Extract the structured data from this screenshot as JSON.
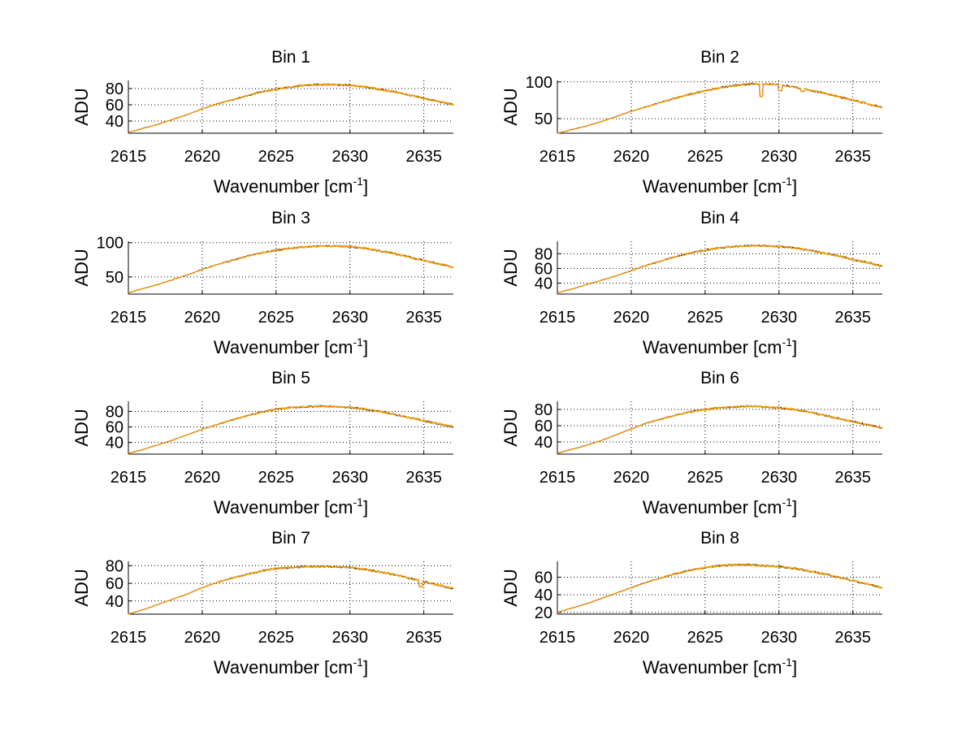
{
  "colors": {
    "background": "#ffffff",
    "series_1": "#1a1a1a",
    "series_2": "#e8c300",
    "series_3": "#ff8c00"
  },
  "chart_data": [
    {
      "type": "line",
      "title": "Bin 1",
      "xlabel": "Wavenumber [cm",
      "xlabel_sup": "-1",
      "xlabel_end": "]",
      "ylabel": "ADU",
      "xlim": [
        2615,
        2637
      ],
      "ylim": [
        25,
        90
      ],
      "xticks": [
        2615,
        2620,
        2625,
        2630,
        2635
      ],
      "yticks": [
        40,
        60,
        80
      ],
      "grid": true,
      "series": [
        {
          "name": "trace-1",
          "color": "#1a1a1a"
        },
        {
          "name": "trace-2",
          "color": "#e8c300"
        },
        {
          "name": "trace-3",
          "color": "#ff8c00"
        }
      ],
      "x": [
        2615,
        2616,
        2617,
        2618,
        2619,
        2620,
        2621,
        2622,
        2623,
        2624,
        2625,
        2626,
        2627,
        2628,
        2629,
        2630,
        2631,
        2632,
        2633,
        2634,
        2635,
        2636,
        2637
      ],
      "y": [
        26,
        31,
        36,
        42,
        48,
        55,
        61,
        66,
        71,
        76,
        79,
        82,
        84,
        85,
        85,
        84,
        82,
        79,
        76,
        72,
        68,
        64,
        60
      ],
      "features": []
    },
    {
      "type": "line",
      "title": "Bin 2",
      "xlabel": "Wavenumber [cm",
      "xlabel_sup": "-1",
      "xlabel_end": "]",
      "ylabel": "ADU",
      "xlim": [
        2615,
        2637
      ],
      "ylim": [
        30,
        102
      ],
      "xticks": [
        2615,
        2620,
        2625,
        2630,
        2635
      ],
      "yticks": [
        50,
        100
      ],
      "grid": true,
      "series": [
        {
          "name": "trace-1",
          "color": "#1a1a1a"
        },
        {
          "name": "trace-2",
          "color": "#e8c300"
        },
        {
          "name": "trace-3",
          "color": "#ff8c00"
        }
      ],
      "x": [
        2615,
        2616,
        2617,
        2618,
        2619,
        2620,
        2621,
        2622,
        2623,
        2624,
        2625,
        2626,
        2627,
        2628,
        2629,
        2630,
        2631,
        2632,
        2633,
        2634,
        2635,
        2636,
        2637
      ],
      "y": [
        30,
        35,
        40,
        46,
        53,
        60,
        66,
        72,
        78,
        83,
        88,
        92,
        95,
        97,
        97,
        96,
        93,
        89,
        85,
        80,
        75,
        70,
        65
      ],
      "features": [
        {
          "x": 2628.8,
          "y": 80
        },
        {
          "x": 2630.1,
          "y": 88
        },
        {
          "x": 2631.6,
          "y": 87
        }
      ]
    },
    {
      "type": "line",
      "title": "Bin 3",
      "xlabel": "Wavenumber [cm",
      "xlabel_sup": "-1",
      "xlabel_end": "]",
      "ylabel": "ADU",
      "xlim": [
        2615,
        2637
      ],
      "ylim": [
        25,
        102
      ],
      "xticks": [
        2615,
        2620,
        2625,
        2630,
        2635
      ],
      "yticks": [
        50,
        100
      ],
      "grid": true,
      "series": [
        {
          "name": "trace-1",
          "color": "#1a1a1a"
        },
        {
          "name": "trace-2",
          "color": "#e8c300"
        },
        {
          "name": "trace-3",
          "color": "#ff8c00"
        }
      ],
      "x": [
        2615,
        2616,
        2617,
        2618,
        2619,
        2620,
        2621,
        2622,
        2623,
        2624,
        2625,
        2626,
        2627,
        2628,
        2629,
        2630,
        2631,
        2632,
        2633,
        2634,
        2635,
        2636,
        2637
      ],
      "y": [
        27,
        33,
        39,
        46,
        53,
        61,
        68,
        74,
        80,
        85,
        89,
        92,
        94,
        95,
        95,
        94,
        92,
        88,
        84,
        79,
        74,
        69,
        64
      ],
      "features": []
    },
    {
      "type": "line",
      "title": "Bin 4",
      "xlabel": "Wavenumber [cm",
      "xlabel_sup": "-1",
      "xlabel_end": "]",
      "ylabel": "ADU",
      "xlim": [
        2615,
        2637
      ],
      "ylim": [
        25,
        97
      ],
      "xticks": [
        2615,
        2620,
        2625,
        2630,
        2635
      ],
      "yticks": [
        40,
        60,
        80
      ],
      "grid": true,
      "series": [
        {
          "name": "trace-1",
          "color": "#1a1a1a"
        },
        {
          "name": "trace-2",
          "color": "#e8c300"
        },
        {
          "name": "trace-3",
          "color": "#ff8c00"
        }
      ],
      "x": [
        2615,
        2616,
        2617,
        2618,
        2619,
        2620,
        2621,
        2622,
        2623,
        2624,
        2625,
        2626,
        2627,
        2628,
        2629,
        2630,
        2631,
        2632,
        2633,
        2634,
        2635,
        2636,
        2637
      ],
      "y": [
        27,
        32,
        38,
        44,
        50,
        57,
        64,
        70,
        76,
        81,
        85,
        88,
        90,
        91,
        91,
        90,
        88,
        85,
        81,
        77,
        72,
        68,
        63
      ],
      "features": []
    },
    {
      "type": "line",
      "title": "Bin 5",
      "xlabel": "Wavenumber [cm",
      "xlabel_sup": "-1",
      "xlabel_end": "]",
      "ylabel": "ADU",
      "xlim": [
        2615,
        2637
      ],
      "ylim": [
        25,
        93
      ],
      "xticks": [
        2615,
        2620,
        2625,
        2630,
        2635
      ],
      "yticks": [
        40,
        60,
        80
      ],
      "grid": true,
      "series": [
        {
          "name": "trace-1",
          "color": "#1a1a1a"
        },
        {
          "name": "trace-2",
          "color": "#e8c300"
        },
        {
          "name": "trace-3",
          "color": "#ff8c00"
        }
      ],
      "x": [
        2615,
        2616,
        2617,
        2618,
        2619,
        2620,
        2621,
        2622,
        2623,
        2624,
        2625,
        2626,
        2627,
        2628,
        2629,
        2630,
        2631,
        2632,
        2633,
        2634,
        2635,
        2636,
        2637
      ],
      "y": [
        26,
        31,
        37,
        43,
        50,
        57,
        63,
        69,
        74,
        79,
        83,
        85,
        86,
        87,
        86,
        85,
        83,
        80,
        76,
        72,
        68,
        64,
        60
      ],
      "features": []
    },
    {
      "type": "line",
      "title": "Bin 6",
      "xlabel": "Wavenumber [cm",
      "xlabel_sup": "-1",
      "xlabel_end": "]",
      "ylabel": "ADU",
      "xlim": [
        2615,
        2637
      ],
      "ylim": [
        25,
        90
      ],
      "xticks": [
        2615,
        2620,
        2625,
        2630,
        2635
      ],
      "yticks": [
        40,
        60,
        80
      ],
      "grid": true,
      "series": [
        {
          "name": "trace-1",
          "color": "#1a1a1a"
        },
        {
          "name": "trace-2",
          "color": "#e8c300"
        },
        {
          "name": "trace-3",
          "color": "#ff8c00"
        }
      ],
      "x": [
        2615,
        2616,
        2617,
        2618,
        2619,
        2620,
        2621,
        2622,
        2623,
        2624,
        2625,
        2626,
        2627,
        2628,
        2629,
        2630,
        2631,
        2632,
        2633,
        2634,
        2635,
        2636,
        2637
      ],
      "y": [
        26,
        31,
        36,
        42,
        49,
        56,
        63,
        68,
        73,
        77,
        80,
        82,
        83,
        84,
        83,
        82,
        80,
        77,
        73,
        69,
        65,
        61,
        57
      ],
      "features": []
    },
    {
      "type": "line",
      "title": "Bin 7",
      "xlabel": "Wavenumber [cm",
      "xlabel_sup": "-1",
      "xlabel_end": "]",
      "ylabel": "ADU",
      "xlim": [
        2615,
        2637
      ],
      "ylim": [
        25,
        85
      ],
      "xticks": [
        2615,
        2620,
        2625,
        2630,
        2635
      ],
      "yticks": [
        40,
        60,
        80
      ],
      "grid": true,
      "series": [
        {
          "name": "trace-1",
          "color": "#1a1a1a"
        },
        {
          "name": "trace-2",
          "color": "#e8c300"
        },
        {
          "name": "trace-3",
          "color": "#ff8c00"
        }
      ],
      "x": [
        2615,
        2616,
        2617,
        2618,
        2619,
        2620,
        2621,
        2622,
        2623,
        2624,
        2625,
        2626,
        2627,
        2628,
        2629,
        2630,
        2631,
        2632,
        2633,
        2634,
        2635,
        2636,
        2637
      ],
      "y": [
        25,
        30,
        36,
        42,
        48,
        55,
        61,
        66,
        70,
        74,
        77,
        78,
        79,
        79,
        79,
        78,
        76,
        73,
        70,
        66,
        62,
        58,
        54
      ],
      "features": [
        {
          "x": 2634.8,
          "y": 56
        }
      ]
    },
    {
      "type": "line",
      "title": "Bin 8",
      "xlabel": "Wavenumber [cm",
      "xlabel_sup": "-1",
      "xlabel_end": "]",
      "ylabel": "ADU",
      "xlim": [
        2615,
        2637
      ],
      "ylim": [
        18,
        78
      ],
      "xticks": [
        2615,
        2620,
        2625,
        2630,
        2635
      ],
      "yticks": [
        20,
        40,
        60
      ],
      "grid": true,
      "series": [
        {
          "name": "trace-1",
          "color": "#1a1a1a"
        },
        {
          "name": "trace-2",
          "color": "#e8c300"
        },
        {
          "name": "trace-3",
          "color": "#ff8c00"
        }
      ],
      "x": [
        2615,
        2616,
        2617,
        2618,
        2619,
        2620,
        2621,
        2622,
        2623,
        2624,
        2625,
        2626,
        2627,
        2628,
        2629,
        2630,
        2631,
        2632,
        2633,
        2634,
        2635,
        2636,
        2637
      ],
      "y": [
        20,
        25,
        30,
        36,
        42,
        48,
        54,
        59,
        64,
        68,
        71,
        73,
        74,
        74,
        73,
        72,
        70,
        67,
        64,
        60,
        56,
        52,
        48
      ],
      "features": []
    }
  ]
}
